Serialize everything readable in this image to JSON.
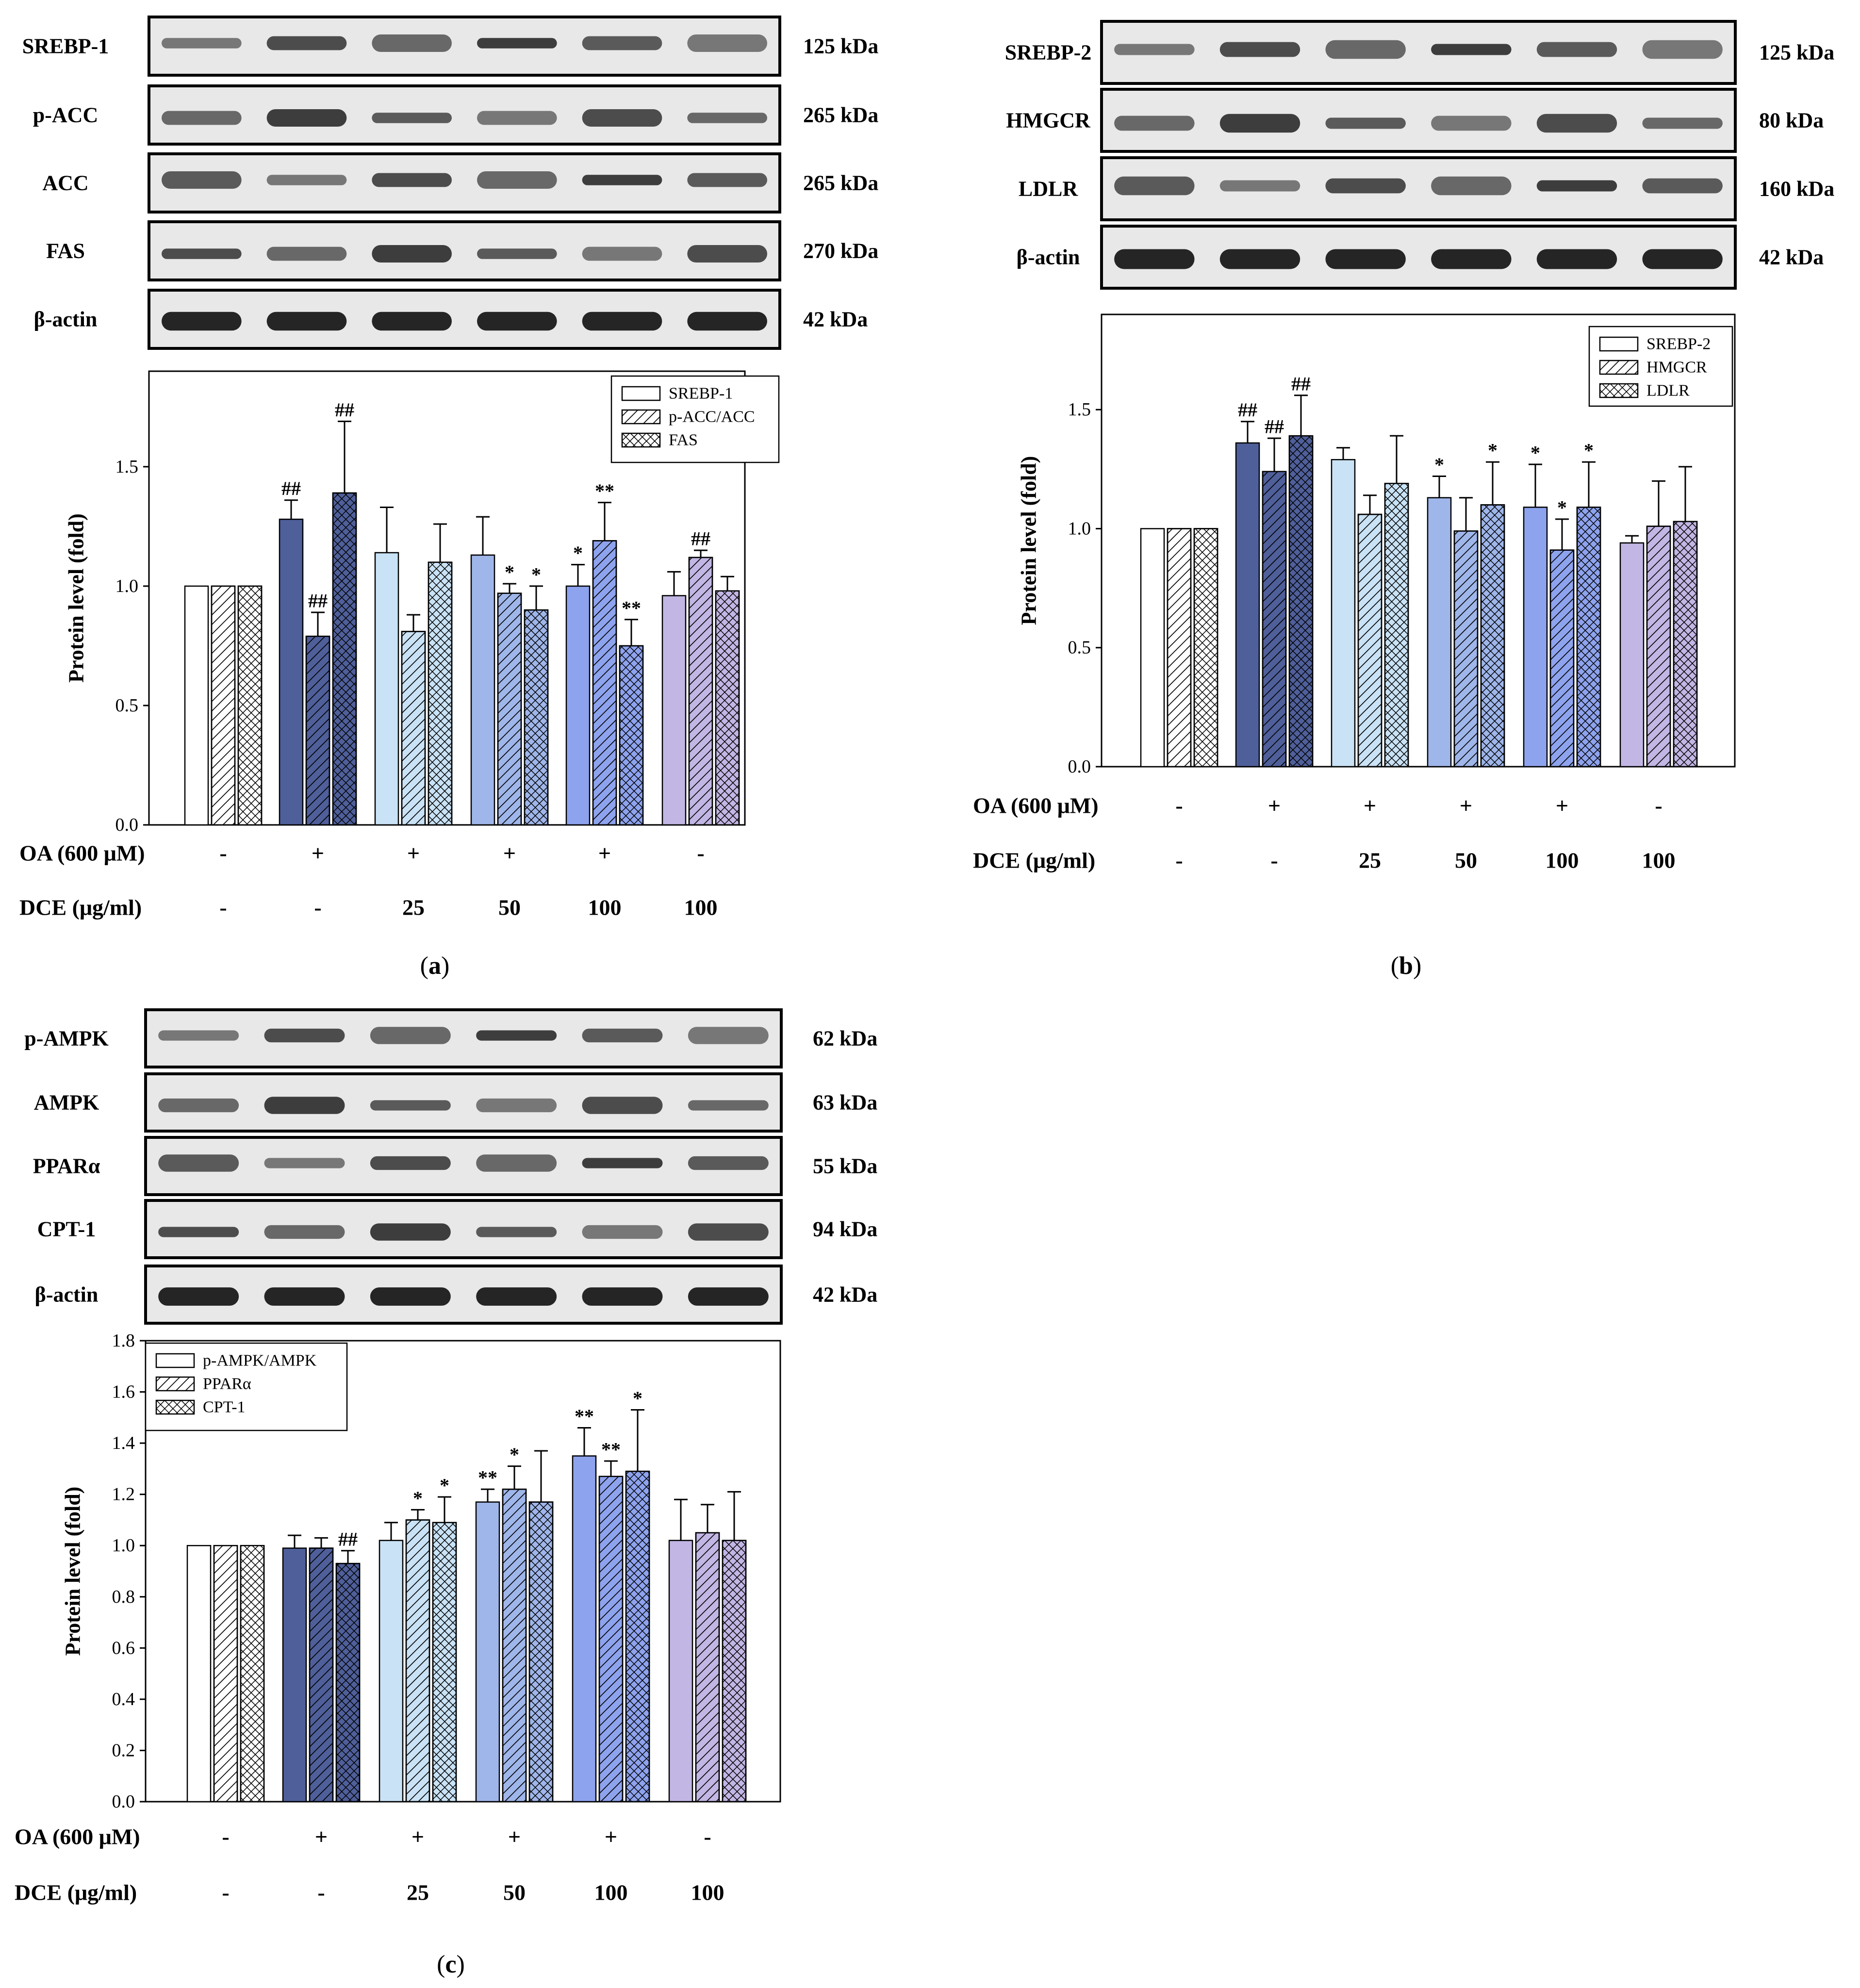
{
  "figure": {
    "blot_band_color": "#1a1a1a",
    "blot_bg_color": "#e8e8e8",
    "bar_color_groups": [
      "#ffffff",
      "#4f5f9a",
      "#c9e2f5",
      "#9fb6ea",
      "#8ea3ee",
      "#c2b6e4"
    ]
  },
  "panels": [
    {
      "caption_letter": "a",
      "caption_open": "(",
      "caption_close": ")",
      "blots": [
        {
          "name": "SREBP-1",
          "kda": "125 kDa"
        },
        {
          "name": "p-ACC",
          "kda": "265 kDa"
        },
        {
          "name": "ACC",
          "kda": "265 kDa"
        },
        {
          "name": "FAS",
          "kda": "270 kDa"
        },
        {
          "name": "β-actin",
          "kda": "42 kDa"
        }
      ],
      "treatments": [
        {
          "label": "OA (600 μM)",
          "values": [
            "-",
            "+",
            "+",
            "+",
            "+",
            "-"
          ]
        },
        {
          "label": "DCE (μg/ml)",
          "values": [
            "-",
            "-",
            "25",
            "50",
            "100",
            "100"
          ]
        }
      ],
      "chart_data": {
        "type": "bar",
        "ylabel": "Protein level (fold)",
        "ylim": [
          0,
          1.9
        ],
        "yticks": [
          0.0,
          0.5,
          1.0,
          1.5
        ],
        "ytick_labels": [
          "0.0",
          "0.5",
          "1.0",
          "1.5"
        ],
        "categories": [
          "OA - / DCE -",
          "OA + / DCE -",
          "OA + / DCE 25",
          "OA + / DCE 50",
          "OA + / DCE 100",
          "OA - / DCE 100"
        ],
        "legend_position": "top-right",
        "series": [
          {
            "name": "SREBP-1",
            "pattern": "plain",
            "values": [
              1.0,
              1.28,
              1.14,
              1.13,
              1.0,
              0.96
            ],
            "errors": [
              0,
              0.08,
              0.19,
              0.16,
              0.09,
              0.1
            ],
            "annotations": [
              "",
              "##",
              "",
              "",
              "*",
              ""
            ]
          },
          {
            "name": "p-ACC/ACC",
            "pattern": "hatch",
            "values": [
              1.0,
              0.79,
              0.81,
              0.97,
              1.19,
              1.12
            ],
            "errors": [
              0,
              0.1,
              0.07,
              0.04,
              0.16,
              0.03
            ],
            "annotations": [
              "",
              "##",
              "",
              "*",
              "**",
              "##"
            ]
          },
          {
            "name": "FAS",
            "pattern": "cross",
            "values": [
              1.0,
              1.39,
              1.1,
              0.9,
              0.75,
              0.98
            ],
            "errors": [
              0,
              0.3,
              0.16,
              0.1,
              0.11,
              0.06
            ],
            "annotations": [
              "",
              "##",
              "",
              "*",
              "**",
              ""
            ]
          }
        ]
      }
    },
    {
      "caption_letter": "b",
      "caption_open": "(",
      "caption_close": ")",
      "blots": [
        {
          "name": "SREBP-2",
          "kda": "125 kDa"
        },
        {
          "name": "HMGCR",
          "kda": "80 kDa"
        },
        {
          "name": "LDLR",
          "kda": "160 kDa"
        },
        {
          "name": "β-actin",
          "kda": "42 kDa"
        }
      ],
      "treatments": [
        {
          "label": "OA (600 μM)",
          "values": [
            "-",
            "+",
            "+",
            "+",
            "+",
            "-"
          ]
        },
        {
          "label": "DCE (μg/ml)",
          "values": [
            "-",
            "-",
            "25",
            "50",
            "100",
            "100"
          ]
        }
      ],
      "chart_data": {
        "type": "bar",
        "ylabel": "Protein level (fold)",
        "ylim": [
          0,
          1.9
        ],
        "yticks": [
          0.0,
          0.5,
          1.0,
          1.5
        ],
        "ytick_labels": [
          "0.0",
          "0.5",
          "1.0",
          "1.5"
        ],
        "categories": [
          "OA - / DCE -",
          "OA + / DCE -",
          "OA + / DCE 25",
          "OA + / DCE 50",
          "OA + / DCE 100",
          "OA - / DCE 100"
        ],
        "legend_position": "top-right",
        "series": [
          {
            "name": "SREBP-2",
            "pattern": "plain",
            "values": [
              1.0,
              1.36,
              1.29,
              1.13,
              1.09,
              0.94
            ],
            "errors": [
              0,
              0.09,
              0.05,
              0.09,
              0.18,
              0.03
            ],
            "annotations": [
              "",
              "##",
              "",
              "*",
              "*",
              ""
            ]
          },
          {
            "name": "HMGCR",
            "pattern": "hatch",
            "values": [
              1.0,
              1.24,
              1.06,
              0.99,
              0.91,
              1.01
            ],
            "errors": [
              0,
              0.14,
              0.08,
              0.14,
              0.13,
              0.19
            ],
            "annotations": [
              "",
              "##",
              "",
              "",
              "*",
              ""
            ]
          },
          {
            "name": "LDLR",
            "pattern": "cross",
            "values": [
              1.0,
              1.39,
              1.19,
              1.1,
              1.09,
              1.03
            ],
            "errors": [
              0,
              0.17,
              0.2,
              0.18,
              0.19,
              0.23
            ],
            "annotations": [
              "",
              "##",
              "",
              "*",
              "*",
              ""
            ]
          }
        ]
      }
    },
    {
      "caption_letter": "c",
      "caption_open": "(",
      "caption_close": ")",
      "blots": [
        {
          "name": "p-AMPK",
          "kda": "62 kDa"
        },
        {
          "name": "AMPK",
          "kda": "63 kDa"
        },
        {
          "name": "PPARα",
          "kda": "55 kDa"
        },
        {
          "name": "CPT-1",
          "kda": "94 kDa"
        },
        {
          "name": "β-actin",
          "kda": "42 kDa"
        }
      ],
      "treatments": [
        {
          "label": "OA (600 μM)",
          "values": [
            "-",
            "+",
            "+",
            "+",
            "+",
            "-"
          ]
        },
        {
          "label": "DCE (μg/ml)",
          "values": [
            "-",
            "-",
            "25",
            "50",
            "100",
            "100"
          ]
        }
      ],
      "chart_data": {
        "type": "bar",
        "ylabel": "Protein level (fold)",
        "ylim": [
          0,
          1.8
        ],
        "yticks": [
          0.0,
          0.2,
          0.4,
          0.6,
          0.8,
          1.0,
          1.2,
          1.4,
          1.6,
          1.8
        ],
        "ytick_labels": [
          "0.0",
          "0.2",
          "0.4",
          "0.6",
          "0.8",
          "1.0",
          "1.2",
          "1.4",
          "1.6",
          "1.8"
        ],
        "categories": [
          "OA - / DCE -",
          "OA + / DCE -",
          "OA + / DCE 25",
          "OA + / DCE 50",
          "OA + / DCE 100",
          "OA - / DCE 100"
        ],
        "legend_position": "top-left",
        "series": [
          {
            "name": "p-AMPK/AMPK",
            "pattern": "plain",
            "values": [
              1.0,
              0.99,
              1.02,
              1.17,
              1.35,
              1.02
            ],
            "errors": [
              0,
              0.05,
              0.07,
              0.05,
              0.11,
              0.16
            ],
            "annotations": [
              "",
              "",
              "",
              "**",
              "**",
              ""
            ]
          },
          {
            "name": "PPARα",
            "pattern": "hatch",
            "values": [
              1.0,
              0.99,
              1.1,
              1.22,
              1.27,
              1.05
            ],
            "errors": [
              0,
              0.04,
              0.04,
              0.09,
              0.06,
              0.11
            ],
            "annotations": [
              "",
              "",
              "*",
              "*",
              "**",
              ""
            ]
          },
          {
            "name": "CPT-1",
            "pattern": "cross",
            "values": [
              1.0,
              0.93,
              1.09,
              1.17,
              1.29,
              1.02
            ],
            "errors": [
              0,
              0.05,
              0.1,
              0.2,
              0.24,
              0.19
            ],
            "annotations": [
              "",
              "##",
              "*",
              "",
              "*",
              ""
            ]
          }
        ]
      }
    }
  ]
}
